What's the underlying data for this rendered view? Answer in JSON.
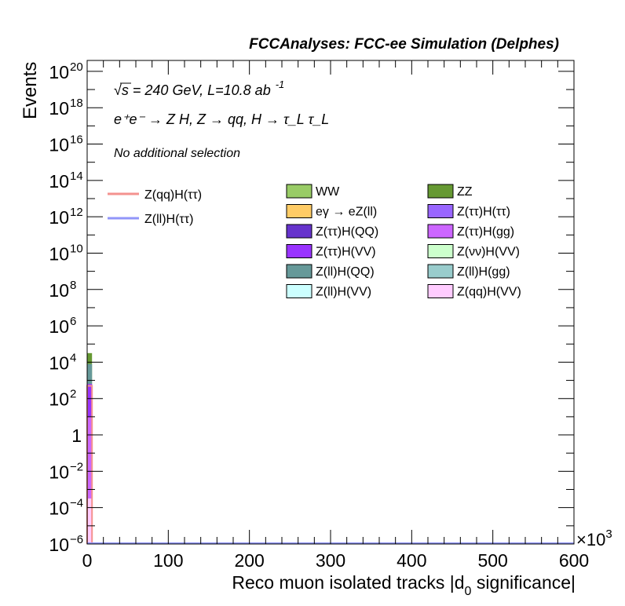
{
  "chart_data": {
    "type": "bar",
    "title": "FCCAnalyses: FCC-ee Simulation (Delphes)",
    "xlabel": "Reco muon isolated tracks |d",
    "xlabel_sub": "0",
    "xlabel_tail": " significance|",
    "ylabel": "Events",
    "x_multiplier": "×10",
    "x_multiplier_exp": "3",
    "xlim": [
      0,
      600
    ],
    "ylim_log10": [
      -6,
      20.6
    ],
    "log_y": true,
    "x_ticks": [
      "0",
      "100",
      "200",
      "300",
      "400",
      "500",
      "600"
    ],
    "y_ticks": [
      {
        "exp": -6,
        "base": "10",
        "sup": "−6"
      },
      {
        "exp": -4,
        "base": "10",
        "sup": "−4"
      },
      {
        "exp": -2,
        "base": "10",
        "sup": "−2"
      },
      {
        "exp": 0,
        "base": "1",
        "sup": ""
      },
      {
        "exp": 2,
        "base": "10",
        "sup": "2"
      },
      {
        "exp": 4,
        "base": "10",
        "sup": "4"
      },
      {
        "exp": 6,
        "base": "10",
        "sup": "6"
      },
      {
        "exp": 8,
        "base": "10",
        "sup": "8"
      },
      {
        "exp": 10,
        "base": "10",
        "sup": "10"
      },
      {
        "exp": 12,
        "base": "10",
        "sup": "12"
      },
      {
        "exp": 14,
        "base": "10",
        "sup": "14"
      },
      {
        "exp": 16,
        "base": "10",
        "sup": "16"
      },
      {
        "exp": 18,
        "base": "10",
        "sup": "18"
      },
      {
        "exp": 20,
        "base": "10",
        "sup": "20"
      }
    ],
    "annotations": {
      "line1_sqrt": "√s",
      "line1_rest": " = 240 GeV, L=10.8 ab",
      "line1_sup": "-1",
      "line2": "e⁺e⁻ → Z H, Z → qq, H → τ_L τ_L",
      "line3": "No additional selection"
    },
    "signal_legend": [
      {
        "name": "Z(qq)H(ττ)",
        "color": "#f4928f"
      },
      {
        "name": "Z(ll)H(ττ)",
        "color": "#9196f9"
      }
    ],
    "background_legend": [
      {
        "name": "WW",
        "color": "#99cc66"
      },
      {
        "name": "ZZ",
        "color": "#669933"
      },
      {
        "name": "eγ → eZ(ll)",
        "color": "#ffcc66"
      },
      {
        "name": "Z(ττ)H(ττ)",
        "color": "#9966ff"
      },
      {
        "name": "Z(ττ)H(QQ)",
        "color": "#6633cc"
      },
      {
        "name": "Z(ττ)H(gg)",
        "color": "#cc66ff"
      },
      {
        "name": "Z(ττ)H(VV)",
        "color": "#9933ff"
      },
      {
        "name": "Z(νν)H(VV)",
        "color": "#ccffcc"
      },
      {
        "name": "Z(ll)H(QQ)",
        "color": "#669999"
      },
      {
        "name": "Z(ll)H(gg)",
        "color": "#99cccc"
      },
      {
        "name": "Z(ll)H(VV)",
        "color": "#ccffff"
      },
      {
        "name": "Z(qq)H(VV)",
        "color": "#ffccff"
      }
    ],
    "bins": {
      "x_low": 0,
      "x_high": 6,
      "stack_log10_top": [
        {
          "name": "Z(ττ)H(VV)",
          "color": "#9933ff",
          "log10": 2.8
        },
        {
          "name": "Z(ll)H(QQ)",
          "color": "#669999",
          "log10": 3.9
        },
        {
          "name": "ZZ",
          "color": "#669933",
          "log10": 4.5
        },
        {
          "name": "Z(ττ)H(gg)",
          "color": "#cc66ff",
          "log10": 1.0
        },
        {
          "name": "Z(qq)H(VV)",
          "color": "#ffccff",
          "log10": -3.5
        }
      ],
      "signal_peak_log10": 2.7
    }
  }
}
